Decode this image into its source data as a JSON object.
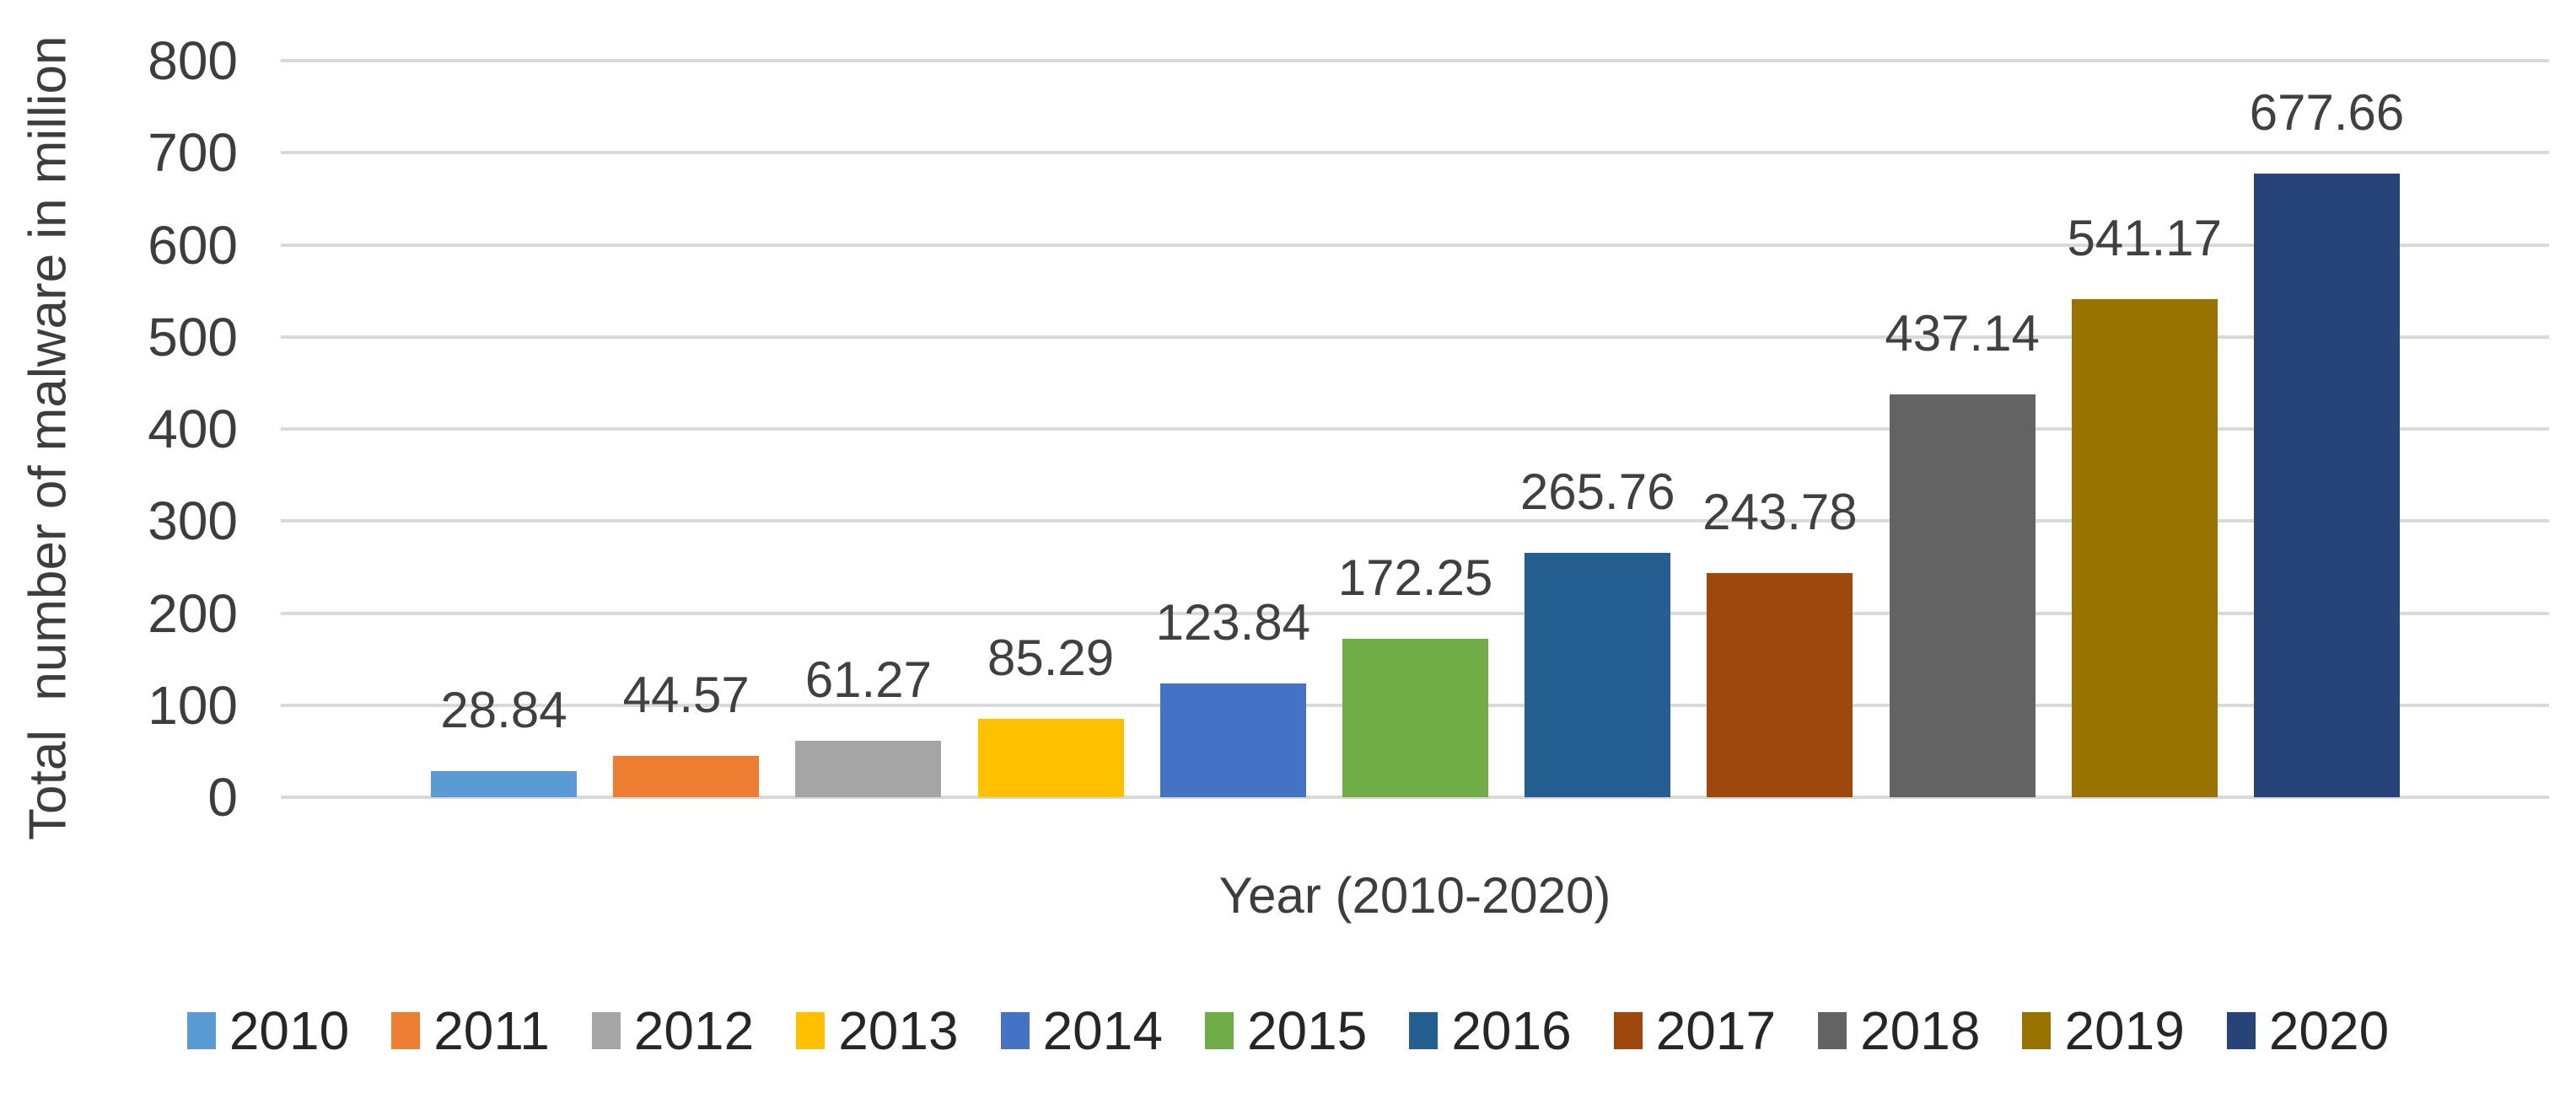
{
  "chart_data": {
    "type": "bar",
    "title": "",
    "xlabel": "Year (2010-2020)",
    "ylabel": "Total  number of malware in million",
    "categories": [
      "2010",
      "2011",
      "2012",
      "2013",
      "2014",
      "2015",
      "2016",
      "2017",
      "2018",
      "2019",
      "2020"
    ],
    "values": [
      28.84,
      44.57,
      61.27,
      85.29,
      123.84,
      172.25,
      265.76,
      243.78,
      437.14,
      541.17,
      677.66
    ],
    "value_labels": [
      "28.84",
      "44.57",
      "61.27",
      "85.29",
      "123.84",
      "172.25",
      "265.76",
      "243.78",
      "437.14",
      "541.17",
      "677.66"
    ],
    "colors": [
      "#5B9BD5",
      "#ED7D31",
      "#A5A5A5",
      "#FFC000",
      "#4472C4",
      "#70AD47",
      "#255E91",
      "#9E480E",
      "#636363",
      "#997300",
      "#264478"
    ],
    "ylim": [
      0,
      800
    ],
    "yticks": [
      0,
      100,
      200,
      300,
      400,
      500,
      600,
      700,
      800
    ],
    "grid": true,
    "gridline_color": "#d9d9d9",
    "legend_position": "bottom",
    "legend_labels": [
      "2010",
      "2011",
      "2012",
      "2013",
      "2014",
      "2015",
      "2016",
      "2017",
      "2018",
      "2019",
      "2020"
    ]
  }
}
